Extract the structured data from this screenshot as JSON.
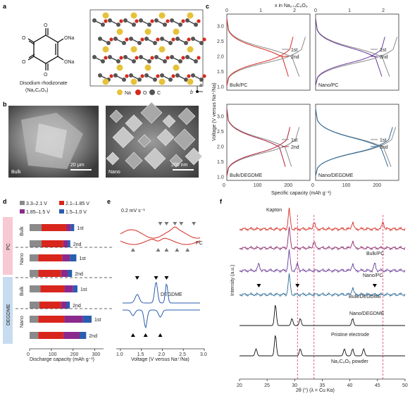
{
  "panels": {
    "a": {
      "letter": "a",
      "molecule_labels": [
        "O",
        "O",
        "O",
        "O",
        "ONa",
        "ONa"
      ],
      "name": "Disodium rhodizonate",
      "formula": "(Na₂C₆O₆)",
      "legend": [
        {
          "label": "Na",
          "color": "#e6c23a"
        },
        {
          "label": "O",
          "color": "#d62a1e"
        },
        {
          "label": "C",
          "color": "#555555"
        }
      ],
      "axes": [
        "a",
        "b"
      ]
    },
    "b": {
      "letter": "b",
      "images": [
        {
          "label": "Bulk",
          "scale": "20 μm"
        },
        {
          "label": "Nano",
          "scale": "200 nm"
        }
      ]
    },
    "c": {
      "letter": "c",
      "top_axis": "x in Na₂₊ₓC₆O₆",
      "ylabel": "Voltage (V versus Na⁺/Na)",
      "xlabel": "Specific capacity (mAh g⁻¹)",
      "top_ticks": [
        "0",
        "1",
        "2"
      ],
      "x_ticks": [
        "0",
        "100",
        "200"
      ],
      "y_ticks": [
        "1.0",
        "1.5",
        "2.0",
        "2.5",
        "3.0"
      ],
      "legend": [
        "1st",
        "2nd"
      ]
    },
    "d": {
      "letter": "d",
      "legend": [
        {
          "label": "3.3–2.1 V",
          "color": "#8a8a8a"
        },
        {
          "label": "2.1–1.85 V",
          "color": "#d9261c"
        },
        {
          "label": "1.85–1.5 V",
          "color": "#8b2a8c"
        },
        {
          "label": "1.5–1.0 V",
          "color": "#2a5db0"
        }
      ],
      "groups": [
        "PC",
        "DEGDME"
      ],
      "sub": [
        "Bulk",
        "Nano",
        "Bulk",
        "Nano"
      ],
      "cycles": [
        "1st",
        "2nd"
      ],
      "xlabel": "Discharge capacity (mAh g⁻¹)",
      "x_ticks": [
        "0",
        "100",
        "200",
        "300"
      ]
    },
    "e": {
      "letter": "e",
      "scan": "0.2 mV s⁻¹",
      "curves": [
        "PC",
        "DEGDME"
      ],
      "xlabel": "Voltage (V versus Na⁺/Na)",
      "x_ticks": [
        "1.0",
        "1.5",
        "2.0",
        "2.5",
        "3.0"
      ]
    },
    "f": {
      "letter": "f",
      "peak_label": "Kapton",
      "ylabel": "Intensity (a.u.)",
      "xlabel": "2θ (°) (λ = Cu Kα)",
      "x_ticks": [
        "20",
        "25",
        "30",
        "35",
        "40",
        "45",
        "50"
      ],
      "traces": [
        {
          "label": "Bulk/PC",
          "color": "#d62a1e"
        },
        {
          "label": "Nano/PC",
          "color": "#8b2a6c"
        },
        {
          "label": "Bulk/DEGDME",
          "color": "#6a3a9a"
        },
        {
          "label": "Nano/DEGDME",
          "color": "#2a6a9a"
        },
        {
          "label": "Pristine electrode",
          "color": "#111111"
        },
        {
          "label": "Na₂C₆O₆ powder",
          "color": "#111111"
        }
      ]
    }
  },
  "chart_data": [
    {
      "type": "line",
      "panel": "c",
      "title": "",
      "xlabel": "Specific capacity (mAh g⁻¹)",
      "ylabel": "Voltage (V versus Na⁺/Na)",
      "xlim": [
        0,
        270
      ],
      "ylim": [
        0.9,
        3.4
      ],
      "subplots": [
        {
          "label": "Bulk/PC",
          "discharge_1st_capacity": 235,
          "discharge_2nd_capacity": 200,
          "charge_1st_capacity": 255,
          "charge_2nd_capacity": 215
        },
        {
          "label": "Nano/PC",
          "discharge_1st_capacity": 240,
          "discharge_2nd_capacity": 215,
          "charge_1st_capacity": 265,
          "charge_2nd_capacity": 225
        },
        {
          "label": "Bulk/DEGDME",
          "discharge_1st_capacity": 210,
          "discharge_2nd_capacity": 190,
          "charge_1st_capacity": 235,
          "charge_2nd_capacity": 205
        },
        {
          "label": "Nano/DEGDME",
          "discharge_1st_capacity": 245,
          "discharge_2nd_capacity": 235,
          "charge_1st_capacity": 260,
          "charge_2nd_capacity": 250
        }
      ]
    },
    {
      "type": "bar",
      "panel": "d",
      "xlabel": "Discharge capacity (mAh g⁻¹)",
      "xlim": [
        0,
        340
      ],
      "categories": [
        "PC Bulk 1st",
        "PC Bulk 2nd",
        "PC Nano 1st",
        "PC Nano 2nd",
        "DEGDME Bulk 1st",
        "DEGDME Bulk 2nd",
        "DEGDME Nano 1st",
        "DEGDME Nano 2nd"
      ],
      "series": [
        {
          "name": "3.3–2.1 V",
          "values": [
            55,
            55,
            40,
            40,
            50,
            45,
            40,
            40
          ]
        },
        {
          "name": "2.1–1.85 V",
          "values": [
            115,
            100,
            110,
            105,
            110,
            100,
            120,
            115
          ]
        },
        {
          "name": "1.85–1.5 V",
          "values": [
            20,
            20,
            35,
            30,
            40,
            25,
            85,
            75
          ]
        },
        {
          "name": "1.5–1.0 V",
          "values": [
            15,
            12,
            30,
            20,
            20,
            15,
            40,
            30
          ]
        }
      ]
    },
    {
      "type": "line",
      "panel": "e",
      "xlabel": "Voltage (V versus Na⁺/Na)",
      "xlim": [
        0.9,
        3.0
      ],
      "series": [
        {
          "name": "PC",
          "anodic_peaks": [
            1.95,
            2.1,
            2.3,
            2.45,
            2.75
          ],
          "cathodic_peaks": [
            1.3,
            1.9,
            2.1,
            2.35,
            2.6
          ]
        },
        {
          "name": "DEGDME",
          "anodic_peaks": [
            1.4,
            1.85,
            2.1
          ],
          "cathodic_peaks": [
            1.3,
            1.6,
            1.95
          ]
        }
      ]
    },
    {
      "type": "line",
      "panel": "f",
      "xlabel": "2θ (°) (λ = Cu Kα)",
      "ylabel": "Intensity (a.u.)",
      "xlim": [
        20,
        50
      ],
      "reference_lines": [
        30.5,
        33.5,
        46
      ],
      "series": [
        {
          "name": "Bulk/PC",
          "peaks": [
            29.0,
            33.5,
            40.5,
            46.0
          ]
        },
        {
          "name": "Nano/PC",
          "peaks": [
            29.0,
            33.5,
            40.5
          ]
        },
        {
          "name": "Bulk/DEGDME",
          "peaks": [
            23.5,
            29.0,
            30.5,
            40.5,
            44.5
          ]
        },
        {
          "name": "Nano/DEGDME",
          "peaks": [
            29.0,
            40.5
          ]
        },
        {
          "name": "Pristine electrode",
          "peaks": [
            26.5,
            29.5,
            31.0,
            40.5
          ]
        },
        {
          "name": "Na₂C₆O₆ powder",
          "peaks": [
            23.0,
            26.5,
            31.0,
            39.0,
            40.5,
            42.5
          ]
        }
      ]
    }
  ]
}
